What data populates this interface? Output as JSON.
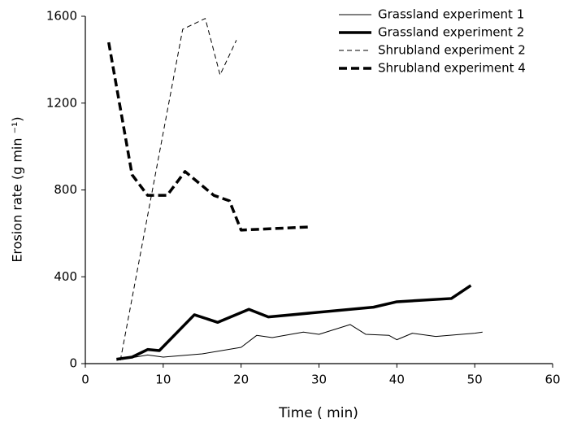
{
  "chart_data": {
    "type": "line",
    "x_label": "Time ( min)",
    "y_label": "Erosion rate (g min ⁻¹)",
    "xlim": [
      0,
      60
    ],
    "xticks": [
      0,
      10,
      20,
      30,
      40,
      50,
      60
    ],
    "ylim": [
      0,
      1600
    ],
    "yticks": [
      0,
      400,
      800,
      1200,
      1600
    ],
    "grid": false,
    "legend": "upper right",
    "series": [
      {
        "name": "Grassland experiment 1",
        "color": "#000000",
        "style": "solid",
        "linewidth": 1,
        "x": [
          4,
          8,
          10,
          15,
          20,
          22,
          24,
          28,
          30,
          34,
          36,
          39,
          40,
          42,
          45,
          50,
          51
        ],
        "values": [
          15,
          40,
          30,
          45,
          75,
          130,
          120,
          145,
          135,
          180,
          135,
          130,
          110,
          140,
          125,
          140,
          145
        ]
      },
      {
        "name": "Grassland experiment 2",
        "color": "#000000",
        "style": "solid",
        "linewidth": 3.5,
        "x": [
          4,
          6,
          8,
          9.5,
          14,
          17,
          21,
          23.5,
          37,
          40,
          47,
          49.5
        ],
        "values": [
          20,
          30,
          65,
          60,
          225,
          190,
          250,
          215,
          260,
          285,
          300,
          360
        ]
      },
      {
        "name": "Shrubland experiment 2",
        "color": "#000000",
        "style": "dashed",
        "linewidth": 1,
        "x": [
          4.5,
          12.5,
          15.4,
          17.3,
          19.4
        ],
        "values": [
          15,
          1540,
          1590,
          1330,
          1490
        ]
      },
      {
        "name": "Shrubland experiment 4",
        "color": "#000000",
        "style": "dashed",
        "linewidth": 3.5,
        "x": [
          3,
          6,
          8,
          10.5,
          12.8,
          16.5,
          18.5,
          20,
          29
        ],
        "values": [
          1480,
          870,
          775,
          775,
          885,
          775,
          750,
          615,
          630
        ]
      }
    ]
  }
}
